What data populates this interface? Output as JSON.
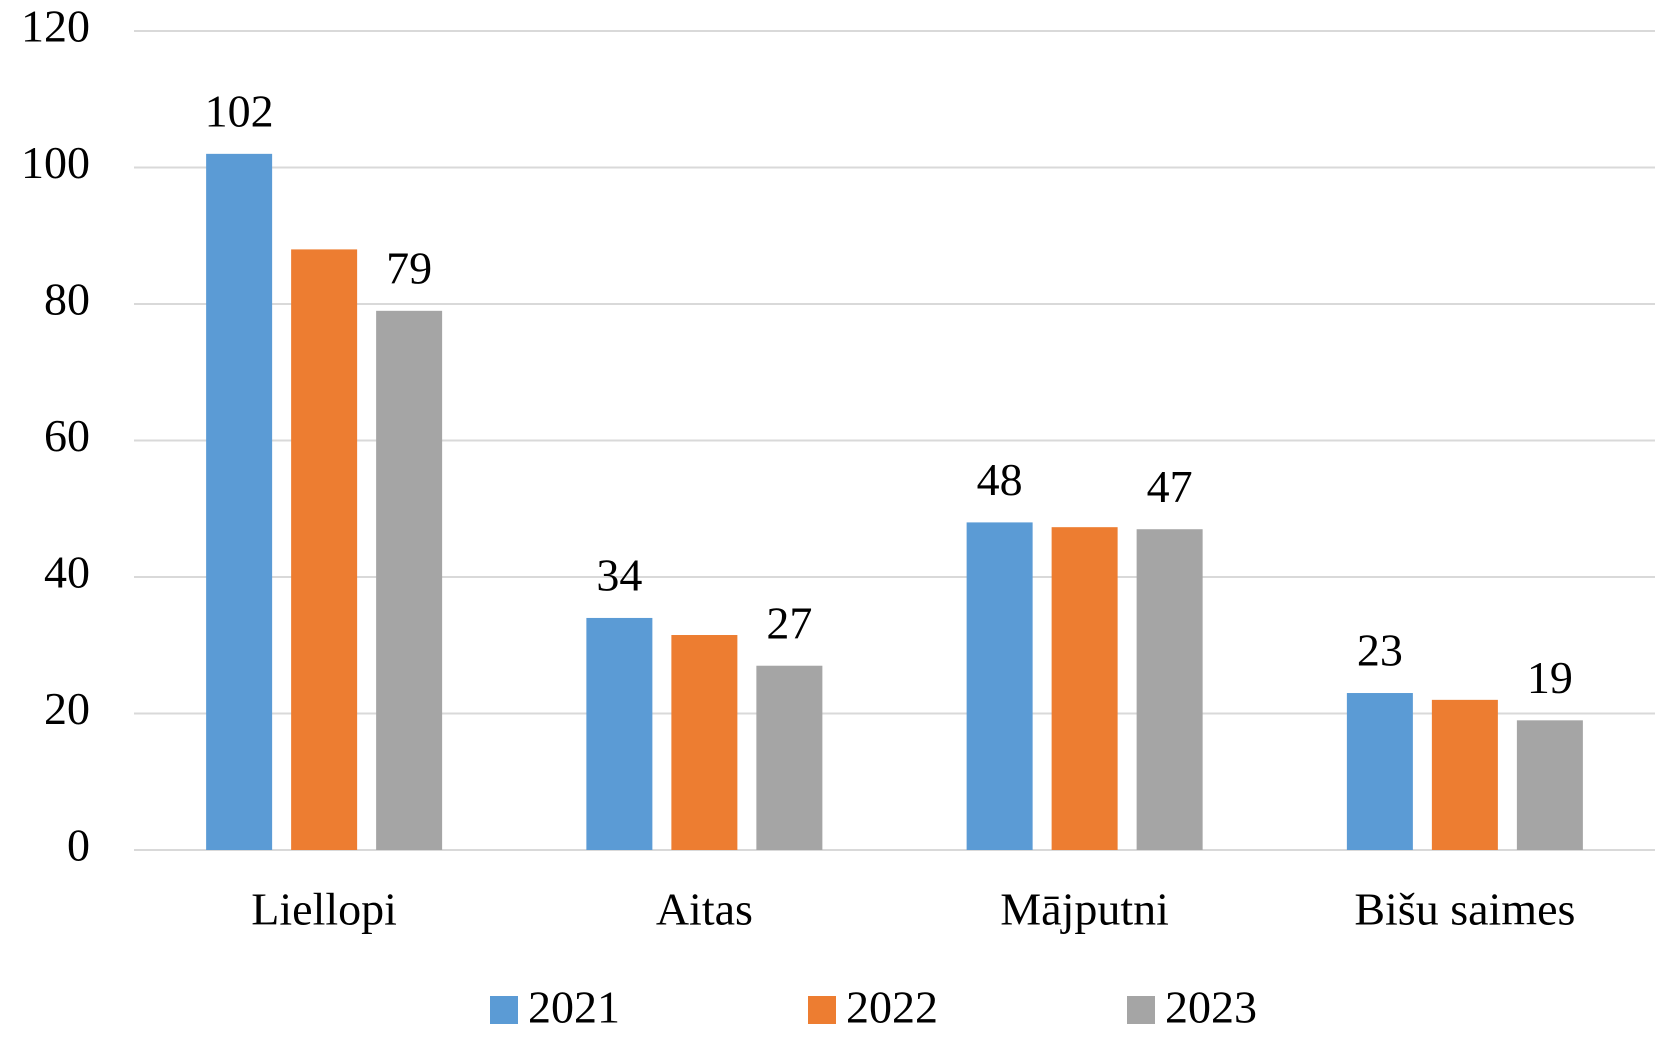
{
  "chart_data": {
    "type": "bar",
    "categories": [
      "Liellopi",
      "Aitas",
      "Mājputni",
      "Bišu saimes"
    ],
    "series": [
      {
        "name": "2021",
        "color": "#5b9bd5",
        "values": [
          102,
          34,
          48,
          23
        ],
        "value_labels": [
          "102",
          "34",
          "48",
          "23"
        ]
      },
      {
        "name": "2022",
        "color": "#ed7d31",
        "values": [
          88,
          31.5,
          47.3,
          22
        ],
        "value_labels": [
          null,
          null,
          null,
          null
        ]
      },
      {
        "name": "2023",
        "color": "#a5a5a5",
        "values": [
          79,
          27,
          47,
          19
        ],
        "value_labels": [
          "79",
          "27",
          "47",
          "19"
        ]
      }
    ],
    "ylim": [
      0,
      120
    ],
    "yticks": [
      0,
      20,
      40,
      60,
      80,
      100,
      120
    ],
    "grid": true,
    "legend": "bottom"
  }
}
